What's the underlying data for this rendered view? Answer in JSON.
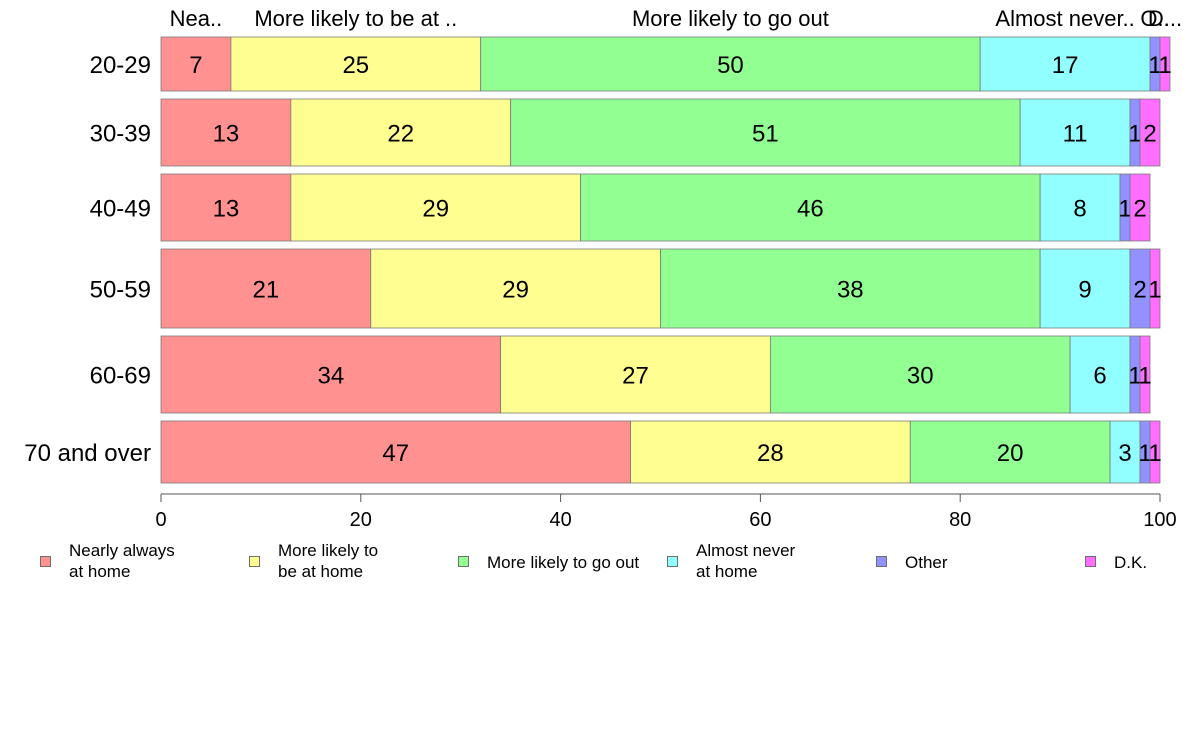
{
  "chart_data": {
    "type": "bar",
    "orientation": "horizontal",
    "stacked": true,
    "title": "",
    "xlabel": "",
    "ylabel": "",
    "xlim": [
      0,
      100
    ],
    "x_ticks": [
      "0",
      "20",
      "40",
      "60",
      "80",
      "100"
    ],
    "grid": false,
    "legend_position": "bottom",
    "categories": [
      "20-29",
      "30-39",
      "40-49",
      "50-59",
      "60-69",
      "70 and over"
    ],
    "column_headers": [
      "Nea..",
      "More likely to be at ..",
      "More likely to go out",
      "Almost never..",
      "O..",
      "D..."
    ],
    "series": [
      {
        "name": "Nearly always\nat home",
        "color": "#ff9191",
        "values": [
          7,
          13,
          13,
          21,
          34,
          47
        ]
      },
      {
        "name": "More likely to\nbe at home",
        "color": "#ffff91",
        "values": [
          25,
          22,
          29,
          29,
          27,
          28
        ]
      },
      {
        "name": "More likely to go out",
        "color": "#91ff91",
        "values": [
          50,
          51,
          46,
          38,
          30,
          20
        ]
      },
      {
        "name": "Almost never\nat home",
        "color": "#91ffff",
        "values": [
          17,
          11,
          8,
          9,
          6,
          3
        ]
      },
      {
        "name": "Other",
        "color": "#9191ff",
        "values": [
          1,
          1,
          1,
          2,
          1,
          1
        ]
      },
      {
        "name": "D.K.",
        "color": "#ff6eff",
        "values": [
          1,
          2,
          2,
          1,
          1,
          1
        ]
      }
    ]
  }
}
